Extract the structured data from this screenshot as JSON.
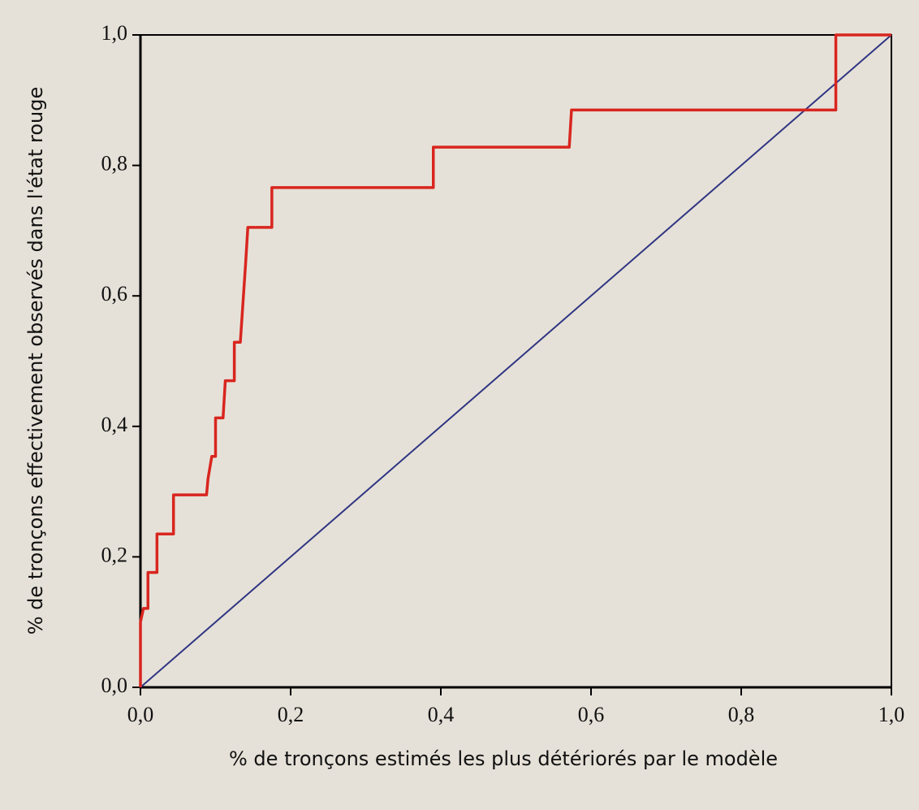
{
  "chart_data": {
    "type": "line",
    "xlabel": "% de tronçons estimés les plus détériorés par le modèle",
    "ylabel": "% de tronçons effectivement observés dans l'état rouge",
    "xlim": [
      0,
      1
    ],
    "ylim": [
      0,
      1
    ],
    "xticks": [
      {
        "value": 0,
        "label": "0,0"
      },
      {
        "value": 0.2,
        "label": "0,2"
      },
      {
        "value": 0.4,
        "label": "0,4"
      },
      {
        "value": 0.6,
        "label": "0,6"
      },
      {
        "value": 0.8,
        "label": "0,8"
      },
      {
        "value": 1,
        "label": "1,0"
      }
    ],
    "yticks": [
      {
        "value": 0,
        "label": "0,0"
      },
      {
        "value": 0.2,
        "label": "0,2"
      },
      {
        "value": 0.4,
        "label": "0,4"
      },
      {
        "value": 0.6,
        "label": "0,6"
      },
      {
        "value": 0.8,
        "label": "0,8"
      },
      {
        "value": 1,
        "label": "1,0"
      }
    ],
    "series": [
      {
        "color": "#2f3582",
        "width": 2,
        "x": [
          0,
          1
        ],
        "values": [
          0,
          1
        ]
      },
      {
        "color": "#d8261f",
        "width": 3.5,
        "x": [
          0,
          0,
          0.004,
          0.01,
          0.01,
          0.022,
          0.022,
          0.044,
          0.044,
          0.088,
          0.09,
          0.095,
          0.1,
          0.1,
          0.11,
          0.113,
          0.125,
          0.125,
          0.133,
          0.14,
          0.143,
          0.175,
          0.175,
          0.39,
          0.39,
          0.571,
          0.574,
          0.926,
          0.926,
          1
        ],
        "values": [
          0,
          0.1,
          0.121,
          0.121,
          0.176,
          0.176,
          0.235,
          0.235,
          0.295,
          0.295,
          0.32,
          0.354,
          0.354,
          0.413,
          0.413,
          0.47,
          0.47,
          0.529,
          0.529,
          0.649,
          0.705,
          0.705,
          0.766,
          0.766,
          0.828,
          0.828,
          0.885,
          0.885,
          1,
          1
        ]
      }
    ]
  }
}
